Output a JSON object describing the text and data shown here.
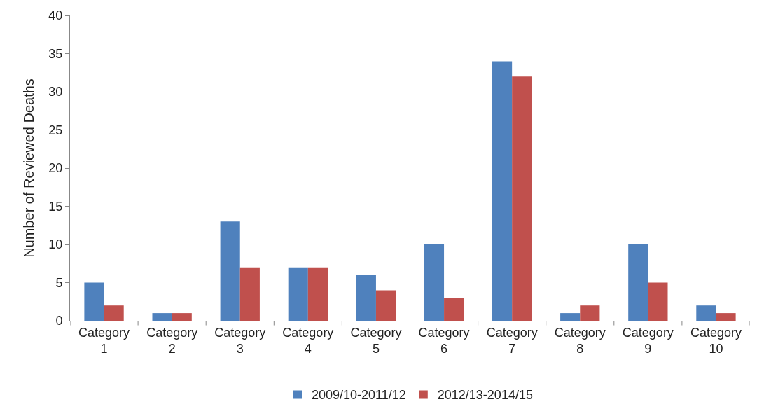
{
  "chart_data": {
    "type": "bar",
    "ylabel": "Number of Reviewed Deaths",
    "categories": [
      "Category 1",
      "Category 2",
      "Category 3",
      "Category 4",
      "Category 5",
      "Category 6",
      "Category 7",
      "Category 8",
      "Category 9",
      "Category 10"
    ],
    "series": [
      {
        "name": "2009/10-2011/12",
        "color": "#4f81bd",
        "values": [
          5,
          1,
          13,
          7,
          6,
          10,
          34,
          1,
          10,
          2
        ]
      },
      {
        "name": "2012/13-2014/15",
        "color": "#c0504d",
        "values": [
          2,
          1,
          7,
          7,
          4,
          3,
          32,
          2,
          5,
          1
        ]
      }
    ],
    "ylim": [
      0,
      40
    ],
    "yticks": [
      0,
      5,
      10,
      15,
      20,
      25,
      30,
      35,
      40
    ],
    "legend": "bottom"
  }
}
